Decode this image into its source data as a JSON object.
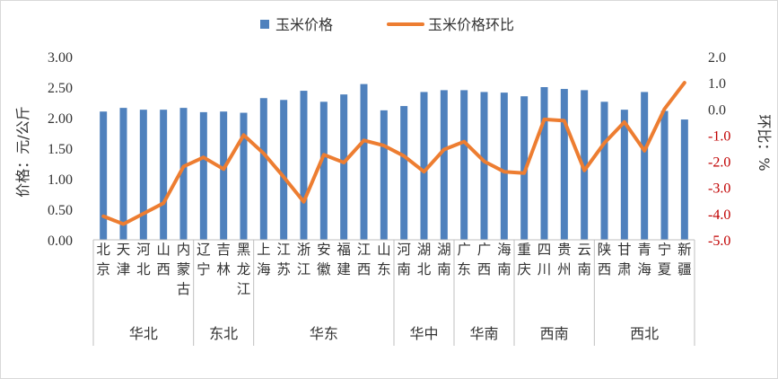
{
  "chart_data": {
    "type": "bar",
    "categories": [
      "北京",
      "天津",
      "河北",
      "山西",
      "内蒙古",
      "辽宁",
      "吉林",
      "黑龙江",
      "上海",
      "江苏",
      "浙江",
      "安徽",
      "福建",
      "江西",
      "山东",
      "河南",
      "湖北",
      "湖南",
      "广东",
      "广西",
      "海南",
      "重庆",
      "四川",
      "贵州",
      "云南",
      "陕西",
      "甘肃",
      "青海",
      "宁夏",
      "新疆"
    ],
    "groups": [
      {
        "name": "华北",
        "count": 5
      },
      {
        "name": "东北",
        "count": 3
      },
      {
        "name": "华东",
        "count": 7
      },
      {
        "name": "华中",
        "count": 3
      },
      {
        "name": "华南",
        "count": 3
      },
      {
        "name": "西南",
        "count": 4
      },
      {
        "name": "西北",
        "count": 5
      }
    ],
    "series": [
      {
        "name": "玉米价格",
        "type": "bar",
        "axis": "left",
        "color": "#4f81bd",
        "values": [
          2.1,
          2.16,
          2.13,
          2.13,
          2.16,
          2.09,
          2.1,
          2.08,
          2.32,
          2.29,
          2.44,
          2.26,
          2.38,
          2.55,
          2.12,
          2.19,
          2.42,
          2.45,
          2.45,
          2.42,
          2.41,
          2.35,
          2.5,
          2.47,
          2.45,
          2.26,
          2.13,
          2.42,
          2.11,
          1.97
        ]
      },
      {
        "name": "玉米价格环比",
        "type": "line",
        "axis": "right",
        "color": "#ed7d31",
        "values": [
          -4.1,
          -4.4,
          -4.0,
          -3.6,
          -2.2,
          -1.85,
          -2.3,
          -1.0,
          -1.7,
          -2.6,
          -3.55,
          -1.75,
          -2.05,
          -1.2,
          -1.4,
          -1.8,
          -2.4,
          -1.55,
          -1.25,
          -2.0,
          -2.4,
          -2.45,
          -0.4,
          -0.45,
          -2.35,
          -1.3,
          -0.5,
          -1.6,
          0.0,
          1.0
        ]
      }
    ],
    "ylabel": "价格：元/公斤",
    "ylabel_right": "环比：%",
    "ylim": [
      0,
      3
    ],
    "yticks": [
      "0.00",
      "0.50",
      "1.00",
      "1.50",
      "2.00",
      "2.50",
      "3.00"
    ],
    "ylim_right": [
      -5,
      2
    ],
    "yticks_right": [
      "-5.0",
      "-4.0",
      "-3.0",
      "-2.0",
      "-1.0",
      "0.0",
      "1.0",
      "2.0"
    ],
    "right_tick_negative_color": "#c00000",
    "grid": false,
    "legend_position": "top"
  }
}
